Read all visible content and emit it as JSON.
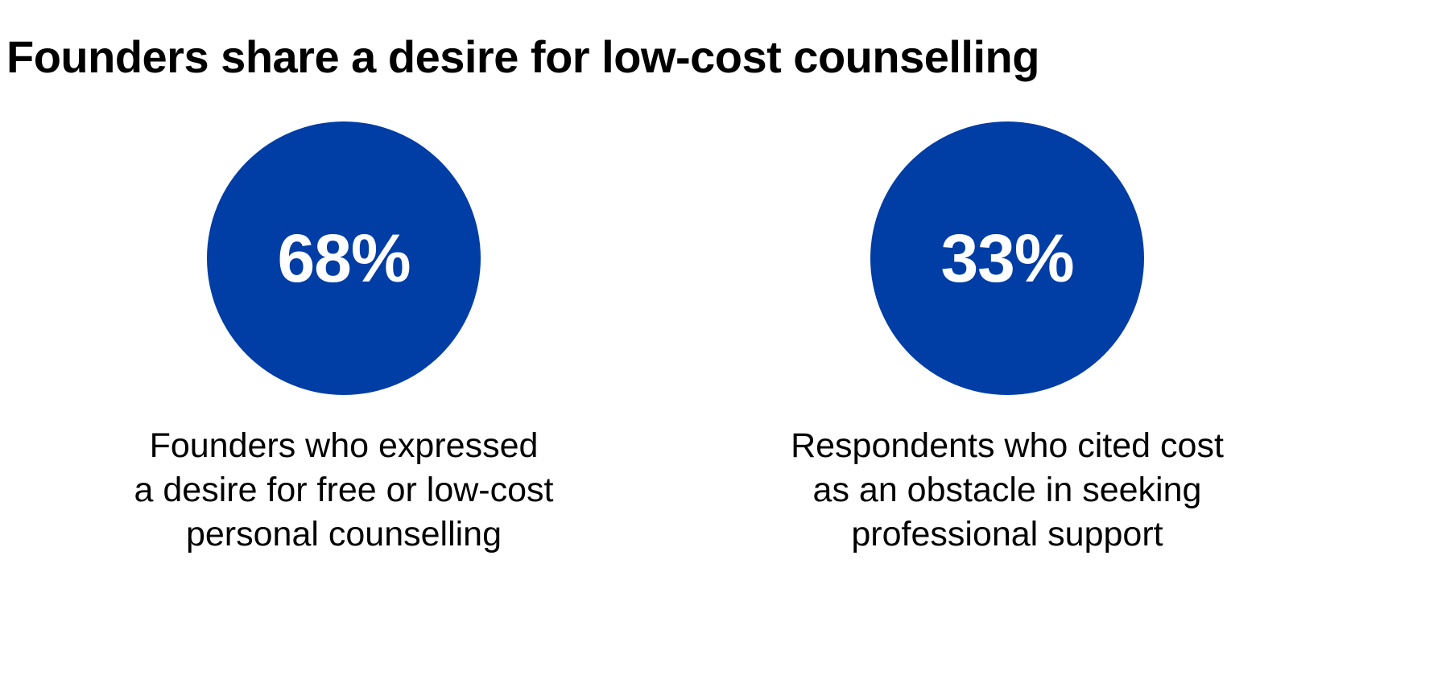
{
  "title": "Founders share a desire for low-cost counselling",
  "colors": {
    "circle_fill": "#003da5",
    "value_text": "#ffffff",
    "caption_text": "#000000"
  },
  "chart_data": {
    "type": "stat-callouts",
    "title": "Founders share a desire for low-cost counselling",
    "stats": [
      {
        "value": 68,
        "label": "68%",
        "caption_lines": [
          "Founders who expressed",
          "a desire for free or low-cost",
          "personal counselling"
        ]
      },
      {
        "value": 33,
        "label": "33%",
        "caption_lines": [
          "Respondents who cited cost",
          "as an obstacle in seeking",
          "professional support"
        ]
      }
    ]
  }
}
